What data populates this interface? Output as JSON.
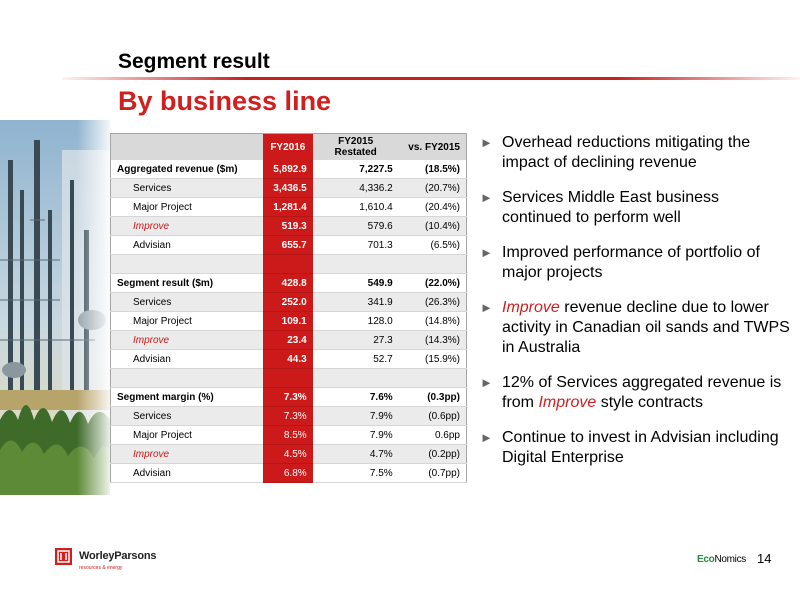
{
  "header": {
    "section_title": "Segment result",
    "subtitle": "By business line"
  },
  "table": {
    "columns": [
      "FY2016",
      "FY2015 Restated",
      "vs. FY2015"
    ],
    "rows": [
      {
        "label": "Aggregated revenue ($m)",
        "fy2016": "5,892.9",
        "fy2015": "7,227.5",
        "vs": "(18.5%)",
        "kind": "total"
      },
      {
        "label": "Services",
        "fy2016": "3,436.5",
        "fy2015": "4,336.2",
        "vs": "(20.7%)",
        "kind": "sub"
      },
      {
        "label": "Major Project",
        "fy2016": "1,281.4",
        "fy2015": "1,610.4",
        "vs": "(20.4%)",
        "kind": "sub"
      },
      {
        "label": "Improve",
        "fy2016": "519.3",
        "fy2015": "579.6",
        "vs": "(10.4%)",
        "kind": "sub-red"
      },
      {
        "label": "Advisian",
        "fy2016": "655.7",
        "fy2015": "701.3",
        "vs": "(6.5%)",
        "kind": "sub"
      },
      {
        "label": "",
        "fy2016": "",
        "fy2015": "",
        "vs": "",
        "kind": "gap"
      },
      {
        "label": "Segment result ($m)",
        "fy2016": "428.8",
        "fy2015": "549.9",
        "vs": "(22.0%)",
        "kind": "total"
      },
      {
        "label": "Services",
        "fy2016": "252.0",
        "fy2015": "341.9",
        "vs": "(26.3%)",
        "kind": "sub"
      },
      {
        "label": "Major Project",
        "fy2016": "109.1",
        "fy2015": "128.0",
        "vs": "(14.8%)",
        "kind": "sub"
      },
      {
        "label": "Improve",
        "fy2016": "23.4",
        "fy2015": "27.3",
        "vs": "(14.3%)",
        "kind": "sub-red"
      },
      {
        "label": "Advisian",
        "fy2016": "44.3",
        "fy2015": "52.7",
        "vs": "(15.9%)",
        "kind": "sub"
      },
      {
        "label": "",
        "fy2016": "",
        "fy2015": "",
        "vs": "",
        "kind": "gap"
      },
      {
        "label": "Segment margin (%)",
        "fy2016": "7.3%",
        "fy2015": "7.6%",
        "vs": "(0.3pp)",
        "kind": "total"
      },
      {
        "label": "Services",
        "fy2016": "7.3%",
        "fy2015": "7.9%",
        "vs": "(0.6pp)",
        "kind": "sub-plain"
      },
      {
        "label": "Major Project",
        "fy2016": "8.5%",
        "fy2015": "7.9%",
        "vs": "0.6pp",
        "kind": "sub-plain"
      },
      {
        "label": "Improve",
        "fy2016": "4.5%",
        "fy2015": "4.7%",
        "vs": "(0.2pp)",
        "kind": "sub-red-plain"
      },
      {
        "label": "Advisian",
        "fy2016": "6.8%",
        "fy2015": "7.5%",
        "vs": "(0.7pp)",
        "kind": "sub-plain"
      }
    ]
  },
  "bullets": [
    [
      {
        "t": "Overhead reductions mitigating the impact of declining revenue"
      }
    ],
    [
      {
        "t": "Services Middle East business continued to perform well"
      }
    ],
    [
      {
        "t": "Improved performance of portfolio of major projects"
      }
    ],
    [
      {
        "t": "Improve",
        "red": true
      },
      {
        "t": " revenue decline due to lower activity in Canadian oil sands and TWPS in Australia"
      }
    ],
    [
      {
        "t": "12% of Services aggregated revenue is from "
      },
      {
        "t": "Improve",
        "red": true
      },
      {
        "t": " style contracts"
      }
    ],
    [
      {
        "t": "Continue to invest in Advisian including Digital Enterprise"
      }
    ]
  ],
  "bullet_marker": "►",
  "footer": {
    "logo_name": "WorleyParsons",
    "logo_tag": "resources & energy",
    "eco_green": "Eco",
    "eco_rest": "Nomics",
    "page_number": "14"
  },
  "colors": {
    "accent_red": "#cc1a1a",
    "header_gray": "#d9d9d9",
    "row_alt": "#ebebeb"
  }
}
